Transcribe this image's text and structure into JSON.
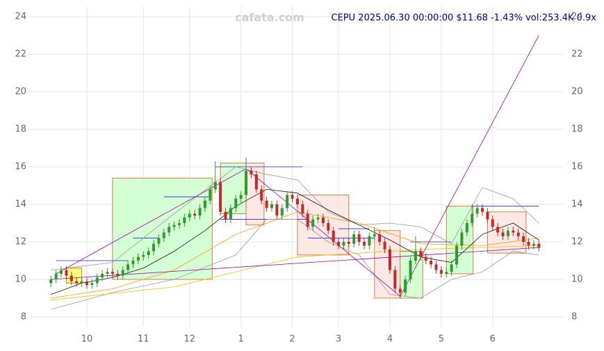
{
  "chart_data": {
    "type": "candlestick",
    "title": "CEPU 2025.06.30 00:00:00 $11.68 -1.43% vol:253.4K 0.9x",
    "watermark": "cafata.com",
    "title_color": "#00008b",
    "up_color": "#2a9d2a",
    "down_color": "#c62828",
    "grid": true,
    "xlim": [
      -4.5,
      99.7
    ],
    "ylim": [
      7.48,
      24.52
    ],
    "yticks": [
      8,
      10,
      12,
      14,
      16,
      18,
      20,
      22,
      24
    ],
    "xticks": [
      {
        "value": 7,
        "label": "10"
      },
      {
        "value": 18,
        "label": "11"
      },
      {
        "value": 27,
        "label": "12"
      },
      {
        "value": 37,
        "label": "1"
      },
      {
        "value": 47,
        "label": "2"
      },
      {
        "value": 56,
        "label": "3"
      },
      {
        "value": 66,
        "label": "4"
      },
      {
        "value": 76,
        "label": "5"
      },
      {
        "value": 86,
        "label": "6"
      }
    ],
    "x": [
      0,
      1,
      2,
      3,
      4,
      5,
      6,
      7,
      8,
      9,
      10,
      11,
      12,
      13,
      14,
      15,
      16,
      17,
      18,
      19,
      20,
      21,
      22,
      23,
      24,
      25,
      26,
      27,
      28,
      29,
      30,
      31,
      32,
      33,
      34,
      35,
      36,
      37,
      38,
      39,
      40,
      41,
      42,
      43,
      44,
      45,
      46,
      47,
      48,
      49,
      50,
      51,
      52,
      53,
      54,
      55,
      56,
      57,
      58,
      59,
      60,
      61,
      62,
      63,
      64,
      65,
      66,
      67,
      68,
      69,
      70,
      71,
      72,
      73,
      74,
      75,
      76,
      77,
      78,
      79,
      80,
      81,
      82,
      83,
      84,
      85,
      86,
      87,
      88,
      89,
      90,
      91,
      92,
      93,
      94,
      95
    ],
    "open": [
      9.8,
      10.0,
      10.3,
      10.5,
      10.2,
      9.9,
      9.8,
      9.9,
      9.7,
      9.8,
      10.1,
      10.3,
      10.4,
      10.3,
      10.2,
      10.5,
      10.8,
      11.0,
      11.2,
      11.3,
      11.5,
      11.9,
      12.2,
      12.5,
      12.8,
      12.9,
      13.0,
      13.3,
      13.5,
      13.4,
      13.8,
      14.2,
      14.8,
      15.2,
      13.6,
      13.2,
      13.8,
      14.3,
      14.5,
      15.8,
      15.6,
      14.8,
      14.2,
      13.8,
      14.0,
      13.4,
      13.8,
      14.5,
      14.3,
      14.0,
      13.5,
      12.8,
      13.2,
      13.3,
      13.0,
      12.6,
      12.0,
      11.8,
      12.0,
      11.9,
      12.4,
      12.0,
      11.8,
      12.3,
      12.4,
      12.0,
      11.6,
      10.5,
      9.5,
      9.3,
      10.0,
      11.0,
      11.5,
      11.2,
      11.0,
      10.8,
      10.5,
      10.3,
      10.4,
      10.8,
      11.8,
      12.5,
      13.0,
      13.5,
      13.8,
      13.6,
      13.2,
      12.8,
      12.5,
      12.3,
      12.6,
      12.5,
      12.3,
      12.0,
      11.8,
      11.9
    ],
    "high": [
      10.2,
      10.5,
      10.7,
      10.7,
      10.4,
      10.1,
      10.1,
      10.1,
      10.0,
      10.3,
      10.5,
      10.6,
      10.6,
      10.5,
      10.7,
      11.0,
      11.2,
      11.4,
      11.5,
      11.7,
      12.1,
      12.4,
      12.7,
      13.0,
      13.1,
      13.2,
      13.5,
      13.7,
      13.7,
      14.0,
      14.4,
      15.0,
      16.3,
      15.4,
      13.8,
      14.0,
      14.5,
      14.7,
      16.5,
      16.0,
      15.8,
      15.0,
      14.4,
      14.2,
      14.2,
      14.0,
      14.7,
      14.7,
      14.5,
      14.2,
      13.7,
      13.4,
      13.5,
      13.5,
      13.2,
      12.8,
      12.2,
      12.2,
      12.2,
      12.6,
      12.6,
      12.2,
      12.5,
      12.8,
      12.6,
      12.2,
      11.8,
      10.7,
      9.7,
      10.2,
      11.2,
      12.3,
      11.7,
      11.4,
      11.2,
      11.0,
      10.7,
      10.6,
      11.0,
      12.0,
      12.7,
      13.2,
      14.0,
      14.0,
      14.0,
      13.8,
      13.4,
      13.0,
      12.7,
      12.8,
      12.8,
      12.7,
      12.5,
      12.2,
      12.1,
      12.1
    ],
    "low": [
      9.6,
      9.8,
      10.1,
      10.0,
      9.7,
      9.6,
      9.6,
      9.5,
      9.5,
      9.6,
      9.9,
      10.1,
      10.1,
      10.0,
      10.0,
      10.3,
      10.6,
      10.8,
      11.0,
      11.1,
      11.3,
      11.7,
      12.0,
      12.3,
      12.6,
      12.7,
      12.8,
      13.1,
      13.2,
      13.2,
      13.6,
      14.0,
      14.6,
      13.4,
      13.0,
      13.0,
      13.6,
      14.1,
      14.3,
      15.4,
      14.6,
      14.0,
      13.6,
      13.6,
      13.2,
      13.2,
      13.6,
      14.1,
      13.8,
      13.3,
      12.6,
      12.6,
      13.0,
      12.8,
      12.4,
      11.8,
      11.6,
      11.6,
      11.7,
      11.7,
      11.8,
      11.6,
      11.6,
      12.1,
      11.8,
      11.4,
      10.3,
      9.3,
      9.0,
      9.1,
      9.8,
      10.8,
      11.0,
      10.8,
      10.6,
      10.3,
      10.1,
      10.1,
      10.2,
      10.6,
      11.6,
      12.3,
      12.8,
      13.3,
      13.4,
      13.0,
      12.6,
      12.3,
      12.1,
      12.1,
      12.3,
      12.1,
      11.8,
      11.6,
      11.6,
      11.5
    ],
    "close": [
      10.0,
      10.3,
      10.5,
      10.2,
      9.9,
      9.8,
      9.9,
      9.7,
      9.8,
      10.1,
      10.3,
      10.4,
      10.3,
      10.2,
      10.5,
      10.8,
      11.0,
      11.2,
      11.3,
      11.5,
      11.9,
      12.2,
      12.5,
      12.8,
      12.9,
      13.0,
      13.3,
      13.5,
      13.4,
      13.8,
      14.2,
      14.8,
      15.2,
      13.6,
      13.2,
      13.8,
      14.3,
      14.5,
      15.8,
      15.6,
      14.8,
      14.2,
      13.8,
      14.0,
      13.4,
      13.8,
      14.5,
      14.3,
      14.0,
      13.5,
      12.8,
      13.2,
      13.3,
      13.0,
      12.6,
      12.0,
      11.8,
      12.0,
      11.9,
      12.4,
      12.0,
      11.8,
      12.3,
      12.4,
      12.0,
      11.6,
      10.5,
      9.5,
      9.3,
      10.0,
      11.0,
      11.5,
      11.2,
      11.0,
      10.8,
      10.5,
      10.3,
      10.4,
      10.8,
      11.8,
      12.5,
      13.0,
      13.5,
      13.8,
      13.6,
      13.2,
      12.8,
      12.5,
      12.3,
      12.6,
      12.5,
      12.3,
      12.0,
      11.8,
      11.9,
      11.68
    ],
    "boxes": [
      {
        "x": [
          3,
          6
        ],
        "y": [
          9.8,
          10.6
        ],
        "fill": "#ffff66",
        "stroke": "#d08040"
      },
      {
        "x": [
          12,
          31.4
        ],
        "y": [
          10.0,
          15.4
        ],
        "fill": "#ccffcc",
        "stroke": "#d08040"
      },
      {
        "x": [
          33,
          38
        ],
        "y": [
          13.5,
          16.2
        ],
        "fill": "#ccffcc",
        "stroke": "#d08040"
      },
      {
        "x": [
          38,
          41.5
        ],
        "y": [
          12.9,
          16.2
        ],
        "fill": "#fbe4df",
        "stroke": "#d08040"
      },
      {
        "x": [
          48,
          58
        ],
        "y": [
          11.3,
          14.5
        ],
        "fill": "#fbe4df",
        "stroke": "#d08040"
      },
      {
        "x": [
          63,
          68
        ],
        "y": [
          9.0,
          12.6
        ],
        "fill": "#fbe4df",
        "stroke": "#d08040"
      },
      {
        "x": [
          68,
          72.4
        ],
        "y": [
          9.0,
          11.5
        ],
        "fill": "#ccffcc",
        "stroke": "#d08040"
      },
      {
        "x": [
          77,
          82.2
        ],
        "y": [
          10.3,
          13.9
        ],
        "fill": "#ccffcc",
        "stroke": "#d08040"
      },
      {
        "x": [
          85,
          92.5
        ],
        "y": [
          11.4,
          13.6
        ],
        "fill": "#fbe4df",
        "stroke": "#d08040"
      }
    ],
    "levels": [
      {
        "x": [
          1,
          15
        ],
        "value": 11.0,
        "color": "#2222cc"
      },
      {
        "x": [
          16,
          21
        ],
        "value": 12.2,
        "color": "#2222cc"
      },
      {
        "x": [
          22,
          31
        ],
        "value": 14.4,
        "color": "#2222cc"
      },
      {
        "x": [
          32,
          49
        ],
        "value": 16.0,
        "color": "#2222cc"
      },
      {
        "x": [
          33,
          50
        ],
        "value": 13.2,
        "color": "#2222cc"
      },
      {
        "x": [
          50,
          63
        ],
        "value": 12.2,
        "color": "#2222cc"
      },
      {
        "x": [
          56,
          62
        ],
        "value": 12.7,
        "color": "#2222cc"
      },
      {
        "x": [
          70,
          78
        ],
        "value": 12.0,
        "color": "#2222cc"
      },
      {
        "x": [
          82,
          95
        ],
        "value": 13.9,
        "color": "#2222cc"
      }
    ],
    "lines": [
      {
        "color": "#999999",
        "x": [
          0,
          12,
          24,
          36,
          42,
          48,
          54,
          60,
          66,
          72,
          78,
          84,
          90,
          95
        ],
        "values": [
          10.5,
          10.9,
          13.5,
          16.0,
          15.6,
          15.3,
          13.6,
          12.9,
          13.0,
          12.8,
          11.9,
          14.9,
          14.3,
          13.0
        ]
      },
      {
        "color": "#999999",
        "x": [
          0,
          12,
          24,
          36,
          42,
          48,
          54,
          60,
          66,
          72,
          78,
          84,
          90,
          95
        ],
        "values": [
          8.4,
          9.3,
          10.0,
          11.3,
          13.2,
          13.2,
          12.0,
          11.3,
          9.2,
          9.0,
          10.0,
          10.4,
          11.5,
          11.3
        ]
      },
      {
        "color": "#f0c000",
        "x": [
          0,
          24,
          48,
          72,
          95
        ],
        "values": [
          8.9,
          9.6,
          11.2,
          11.6,
          11.8
        ]
      },
      {
        "color": "#ff9900",
        "x": [
          0,
          12,
          24,
          36,
          48,
          60,
          72,
          84,
          95
        ],
        "values": [
          9.0,
          9.5,
          10.5,
          12.4,
          13.6,
          13.0,
          11.9,
          11.8,
          12.2
        ]
      },
      {
        "color": "#111111",
        "x": [
          0,
          6,
          12,
          18,
          24,
          30,
          36,
          42,
          48,
          54,
          60,
          66,
          72,
          78,
          84,
          90,
          95
        ],
        "values": [
          9.2,
          9.8,
          10.1,
          10.6,
          11.5,
          12.6,
          13.9,
          14.8,
          14.6,
          13.7,
          12.9,
          12.1,
          11.2,
          10.9,
          12.4,
          13.0,
          12.1
        ]
      },
      {
        "color": "#990099",
        "x": [
          1,
          38
        ],
        "values": [
          10.3,
          15.9
        ]
      },
      {
        "color": "#990099",
        "x": [
          38,
          68
        ],
        "values": [
          15.9,
          9.1
        ]
      },
      {
        "color": "#990099",
        "x": [
          68,
          95
        ],
        "values": [
          9.1,
          23.0
        ]
      },
      {
        "color": "#990099",
        "x": [
          0,
          95
        ],
        "values": [
          10.0,
          11.7
        ]
      }
    ]
  }
}
